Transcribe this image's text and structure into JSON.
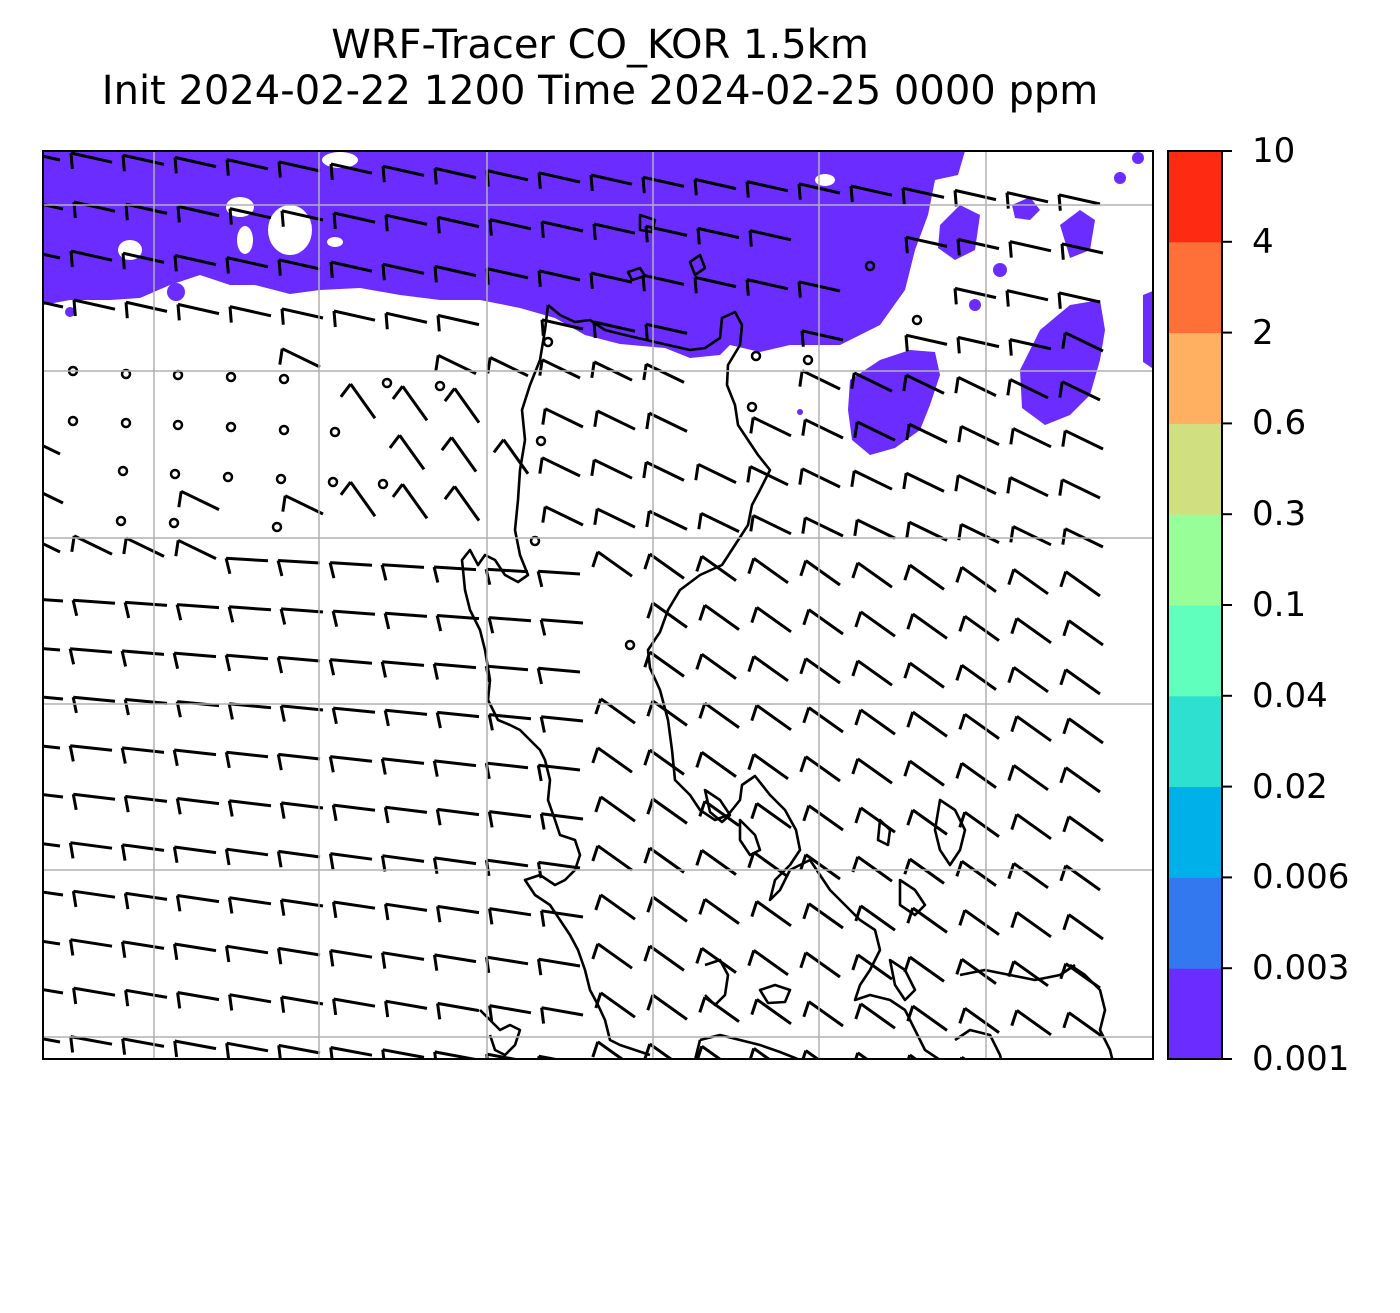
{
  "title": {
    "line1": "WRF-Tracer CO_KOR 1.5km",
    "line2": "Init 2024-02-22 1200 Time 2024-02-25 0000 ppm"
  },
  "colorbar": {
    "levels": [
      "0.001",
      "0.003",
      "0.006",
      "0.02",
      "0.04",
      "0.1",
      "0.3",
      "0.6",
      "2",
      "4",
      "10"
    ],
    "colors": [
      "#6a2cff",
      "#3478f0",
      "#00b0e8",
      "#2ee0d0",
      "#60ffbe",
      "#98ff98",
      "#d0e080",
      "#ffb060",
      "#ff7038",
      "#ff2a12"
    ]
  },
  "map": {
    "fill_color": "#6a2cff",
    "grid_color": "#b0b0b0",
    "coast_color": "#000000",
    "barb_color": "#000000"
  }
}
